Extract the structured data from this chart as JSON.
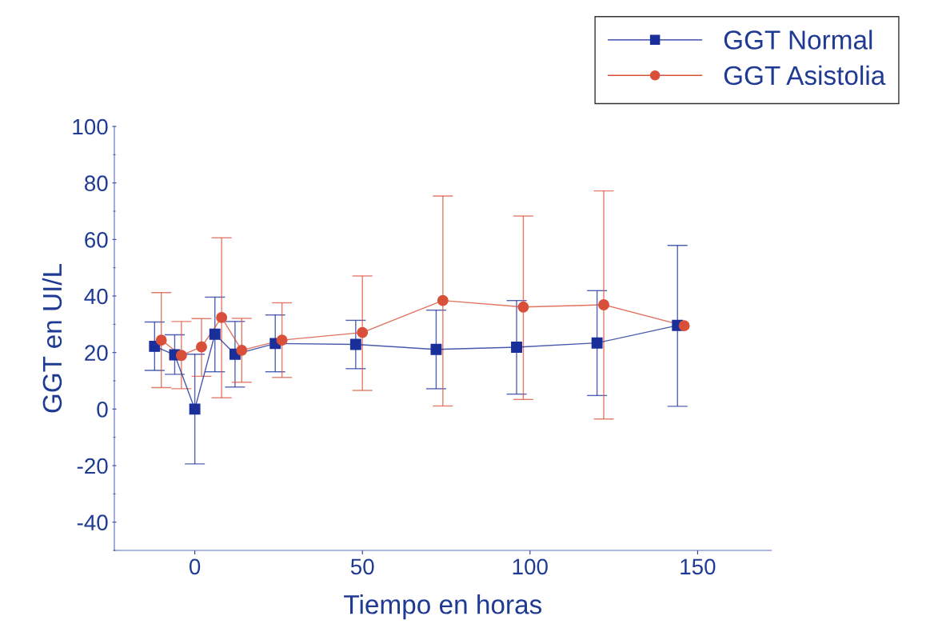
{
  "chart_data": {
    "type": "line",
    "xlabel": "Tiempo en horas",
    "ylabel": "GGT en UI/L",
    "xlim": [
      -24,
      172
    ],
    "xticks": [
      0,
      50,
      100,
      150
    ],
    "ylim": [
      -50,
      100
    ],
    "yticks": [
      -40,
      -20,
      0,
      20,
      40,
      60,
      80,
      100
    ],
    "grid": false,
    "legend": "top right",
    "series": [
      {
        "name": "GGT Normal",
        "color": "#1a2f9a",
        "marker": "square",
        "x": [
          -12,
          -6,
          0,
          6,
          12,
          24,
          48,
          72,
          96,
          120,
          144
        ],
        "values": [
          22.2,
          19.2,
          0,
          26.5,
          19.4,
          23.2,
          22.9,
          21.1,
          21.9,
          23.4,
          29.6
        ],
        "errors": [
          [
            13.7,
            30.8
          ],
          [
            12.3,
            26.3
          ],
          [
            -19.4,
            19.4
          ],
          [
            13.2,
            39.6
          ],
          [
            7.8,
            31
          ],
          [
            13.2,
            33.3
          ],
          [
            14.3,
            31.4
          ],
          [
            7.2,
            35
          ],
          [
            5.3,
            38.4
          ],
          [
            4.8,
            41.9
          ],
          [
            1,
            57.9
          ]
        ]
      },
      {
        "name": "GGT Asistolia",
        "color": "#d9503a",
        "marker": "circle",
        "x": [
          -10,
          -4,
          2,
          8,
          14,
          26,
          50,
          74,
          98,
          122,
          146
        ],
        "values": [
          24.4,
          19,
          22,
          32.4,
          20.8,
          24.4,
          27.1,
          38.4,
          36.1,
          36.9,
          29.5
        ],
        "errors": [
          [
            7.6,
            41.2
          ],
          [
            7.2,
            31
          ],
          [
            11.6,
            32
          ],
          [
            4,
            60.6
          ],
          [
            9.5,
            32.1
          ],
          [
            11.2,
            37.6
          ],
          [
            6.6,
            47.1
          ],
          [
            1.1,
            75.4
          ],
          [
            3.4,
            68.3
          ],
          [
            -3.5,
            77.2
          ],
          null
        ]
      }
    ]
  }
}
